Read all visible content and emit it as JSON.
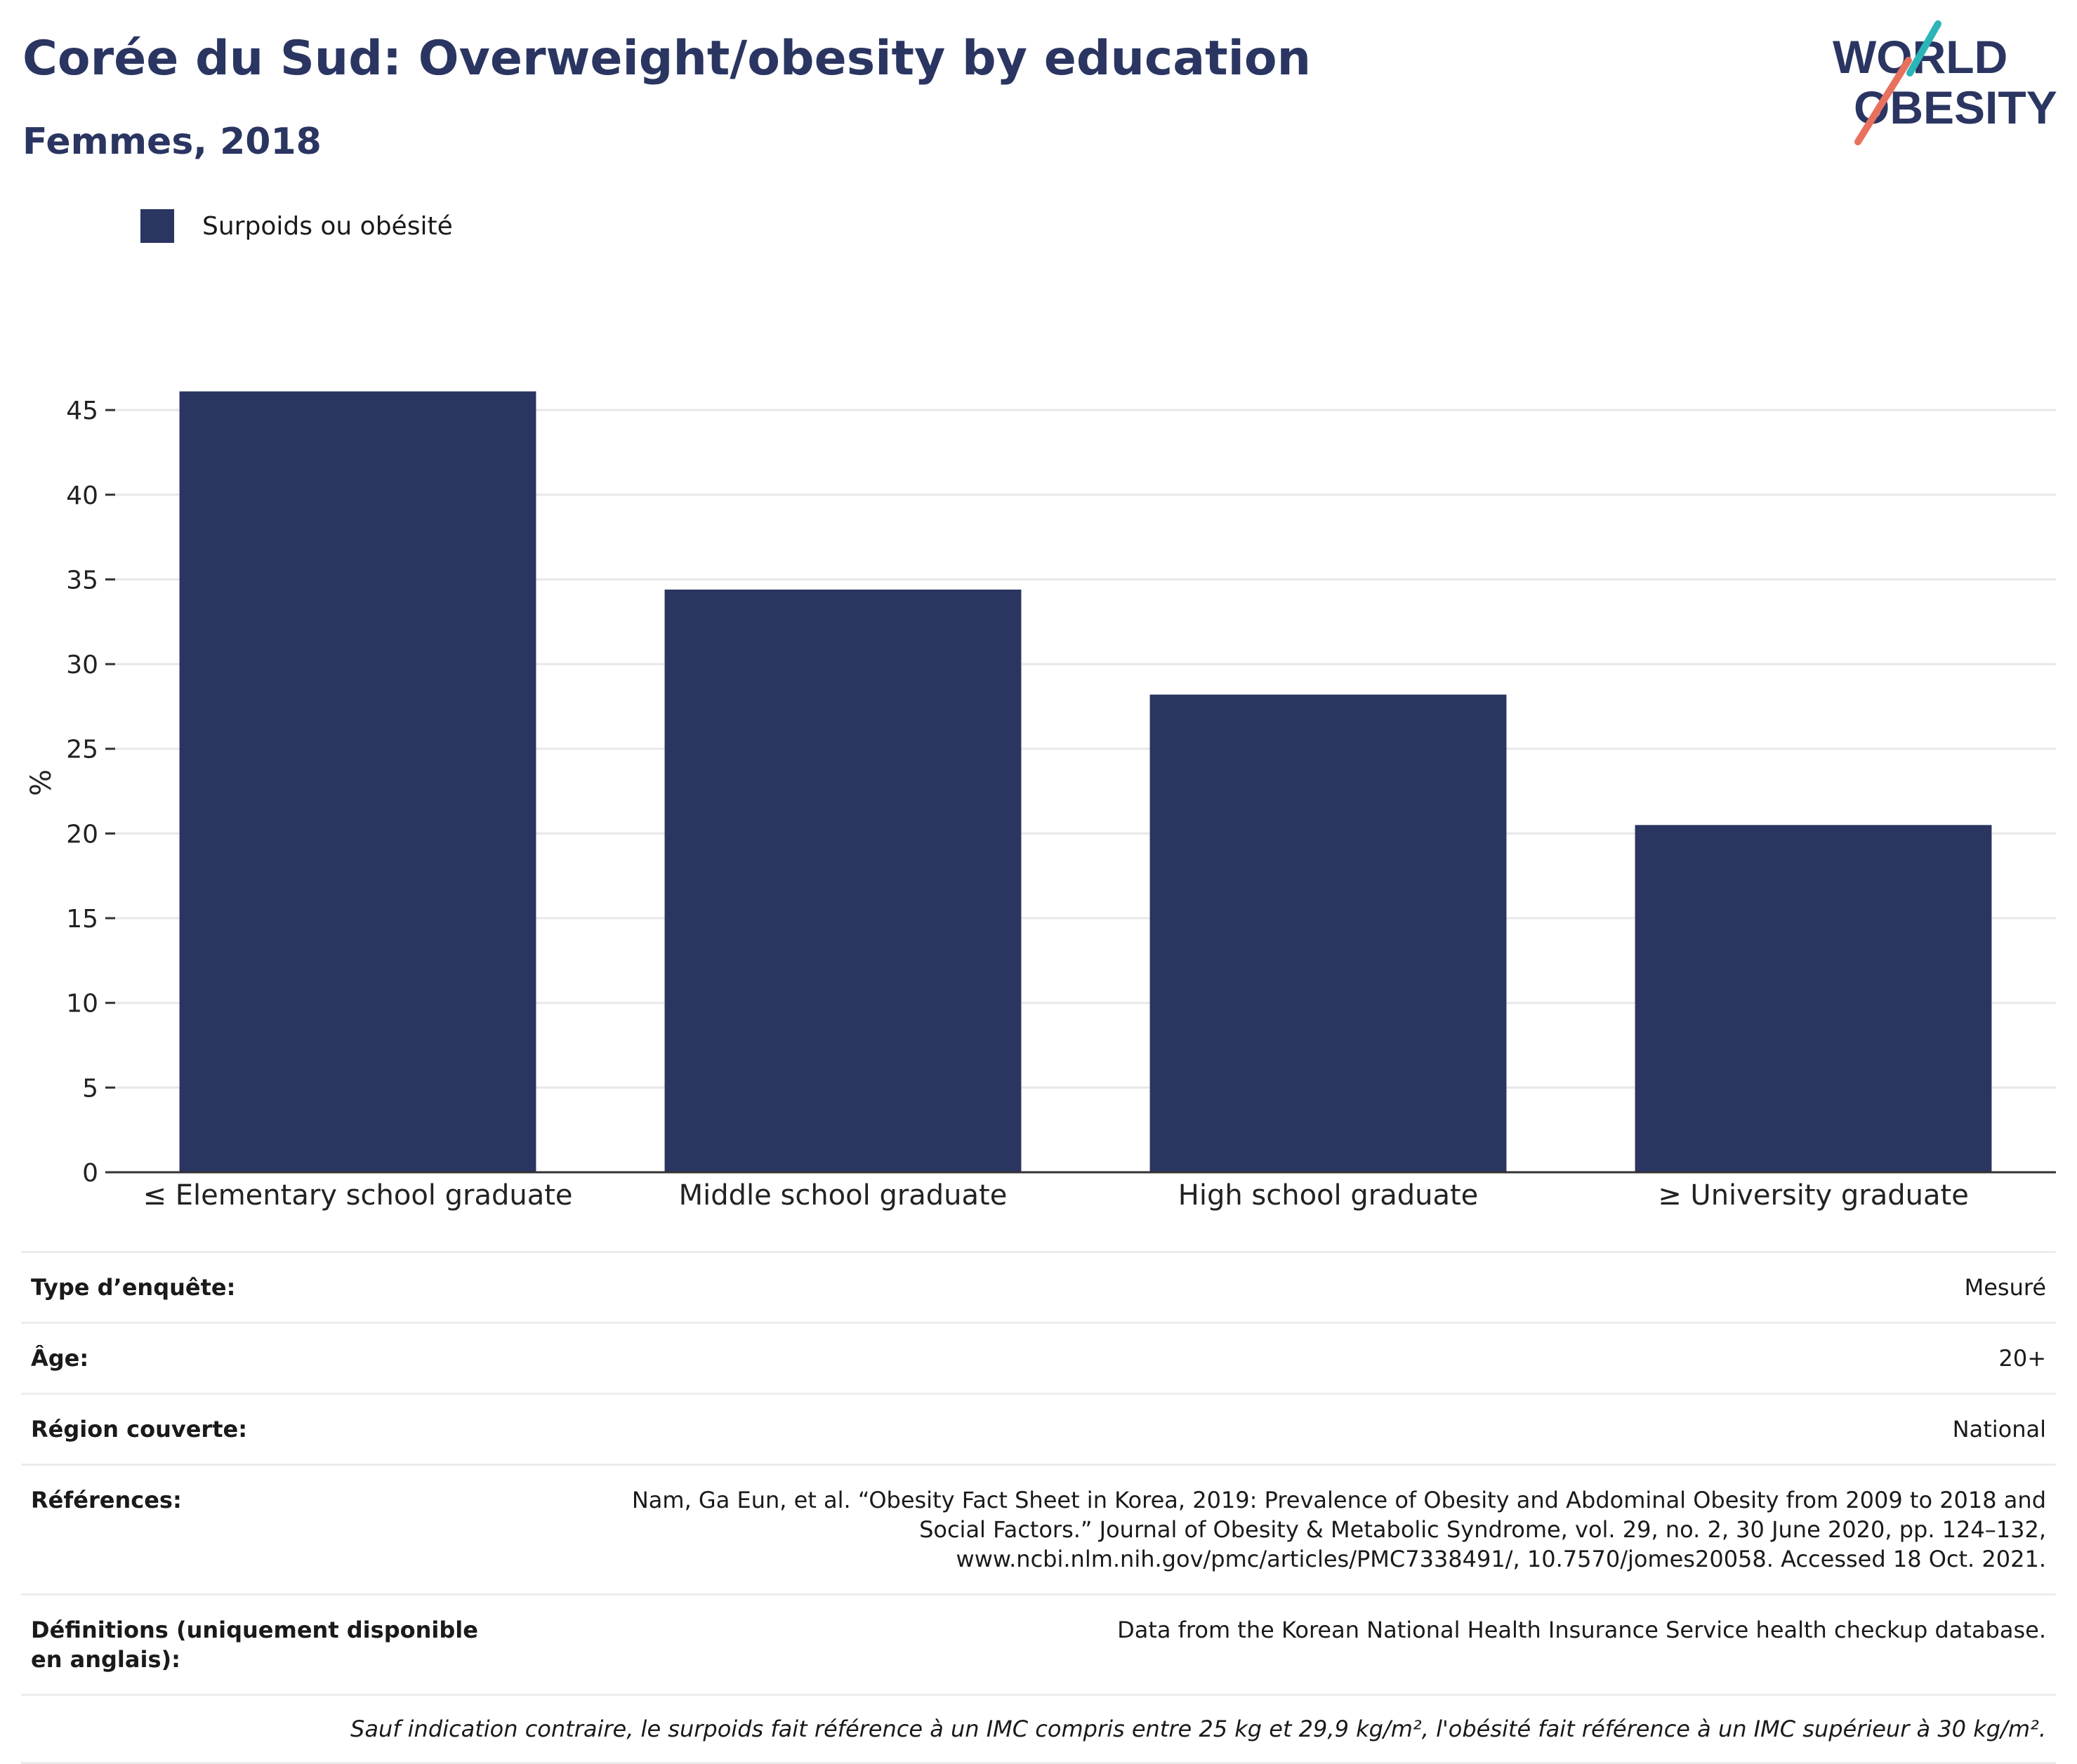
{
  "header": {
    "title": "Corée du Sud: Overweight/obesity by education",
    "subtitle": "Femmes, 2018"
  },
  "logo": {
    "line1": "WORLD",
    "line2": "OBESITY",
    "colors": {
      "text": "#2a3561",
      "slash_teal": "#2bb5b8",
      "slash_red": "#e8715e"
    }
  },
  "legend": {
    "items": [
      {
        "label": "Surpoids ou obésité",
        "color": "#2a3561"
      }
    ]
  },
  "chart_data": {
    "type": "bar",
    "categories": [
      "≤ Elementary school graduate",
      "Middle school graduate",
      "High school graduate",
      "≥ University graduate"
    ],
    "series": [
      {
        "name": "Surpoids ou obésité",
        "values": [
          46.1,
          34.4,
          28.2,
          20.5
        ],
        "color": "#2a3561"
      }
    ],
    "ylabel": "%",
    "xlabel": "",
    "ylim": [
      0,
      46
    ],
    "yticks": [
      0,
      5,
      10,
      15,
      20,
      25,
      30,
      35,
      40,
      45
    ],
    "grid": true,
    "legend_position": "top-left"
  },
  "info": {
    "rows": [
      {
        "key": "Type d’enquête:",
        "value": "Mesuré"
      },
      {
        "key": "Âge:",
        "value": "20+"
      },
      {
        "key": "Région couverte:",
        "value": "National"
      },
      {
        "key": "Références:",
        "value": "Nam, Ga Eun, et al. “Obesity Fact Sheet in Korea, 2019: Prevalence of Obesity and Abdominal Obesity from 2009 to 2018 and Social Factors.” Journal of Obesity & Metabolic Syndrome, vol. 29, no. 2, 30 June 2020, pp. 124–132, www.ncbi.nlm.nih.gov/pmc/articles/PMC7338491/, 10.7570/jomes20058. Accessed 18 Oct. 2021."
      },
      {
        "key": "Définitions (uniquement disponible en anglais):",
        "value": "Data from the Korean National Health Insurance Service health checkup database."
      }
    ],
    "note": "Sauf indication contraire, le surpoids fait référence à un IMC compris entre 25 kg et 29,9 kg/m², l'obésité fait référence à un IMC supérieur à 30 kg/m²."
  }
}
